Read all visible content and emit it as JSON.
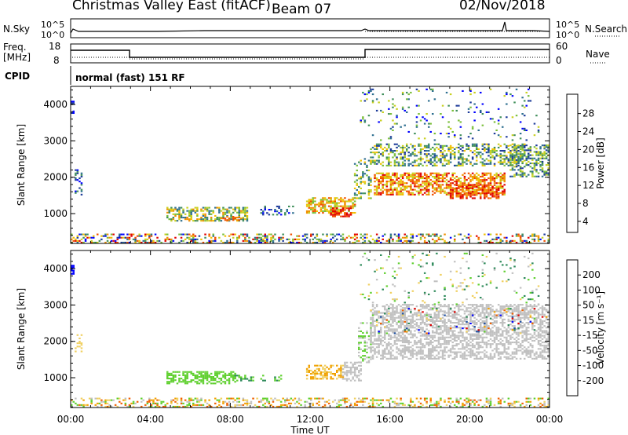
{
  "header": {
    "title": "Christmas Valley East (fitACF)",
    "beam": "Beam 07",
    "date": "02/Nov/2018"
  },
  "strip_panels": {
    "nsky_label": "N.Sky",
    "nsky_ticks": [
      "10^5",
      "10^0"
    ],
    "nsearch_label": "N.Search",
    "nsearch_ticks": [
      "10^5",
      "10^0"
    ],
    "freq_label_1": "Freq.",
    "freq_label_2": "[MHz]",
    "freq_ticks": [
      "18",
      "8"
    ],
    "nave_label": "Nave",
    "nave_ticks": [
      "60",
      "0"
    ],
    "cpid_label": "CPID",
    "cpid_value": "normal (fast) 151 RF"
  },
  "chart_data": [
    {
      "type": "heatmap",
      "quantity": "Power",
      "ylabel": "Slant Range [km]",
      "yticks": [
        "4000",
        "3000",
        "2000",
        "1000"
      ],
      "ylim": [
        180,
        4500
      ],
      "xlim": [
        0,
        24
      ],
      "colorbar_label": "Power [dB]",
      "colorbar_ticks": [
        "28",
        "24",
        "20",
        "16",
        "12",
        "8",
        "4"
      ],
      "colors": [
        "#0000ff",
        "#1e3c9a",
        "#2e6f90",
        "#3f8f5a",
        "#7abf3a",
        "#c8d020",
        "#f0c000",
        "#f09000",
        "#f05000",
        "#e00000"
      ]
    },
    {
      "type": "heatmap",
      "quantity": "Velocity",
      "ylabel": "Slant Range [km]",
      "yticks": [
        "4000",
        "3000",
        "2000",
        "1000"
      ],
      "ylim": [
        180,
        4500
      ],
      "xlim": [
        0,
        24
      ],
      "colorbar_label": "Velocity [m s⁻¹]",
      "colorbar_ticks": [
        "200",
        "100",
        "50",
        "15",
        "-15",
        "-50",
        "-100",
        "-200"
      ],
      "colors": [
        "#e00000",
        "#f06000",
        "#f0a000",
        "#f0d060",
        "#c0c0c0",
        "#60d030",
        "#2e8a5a",
        "#2050a0",
        "#0000ff"
      ],
      "xticks": [
        "00:00",
        "04:00",
        "08:00",
        "12:00",
        "16:00",
        "20:00",
        "00:00"
      ],
      "xlabel": "Time UT"
    }
  ]
}
